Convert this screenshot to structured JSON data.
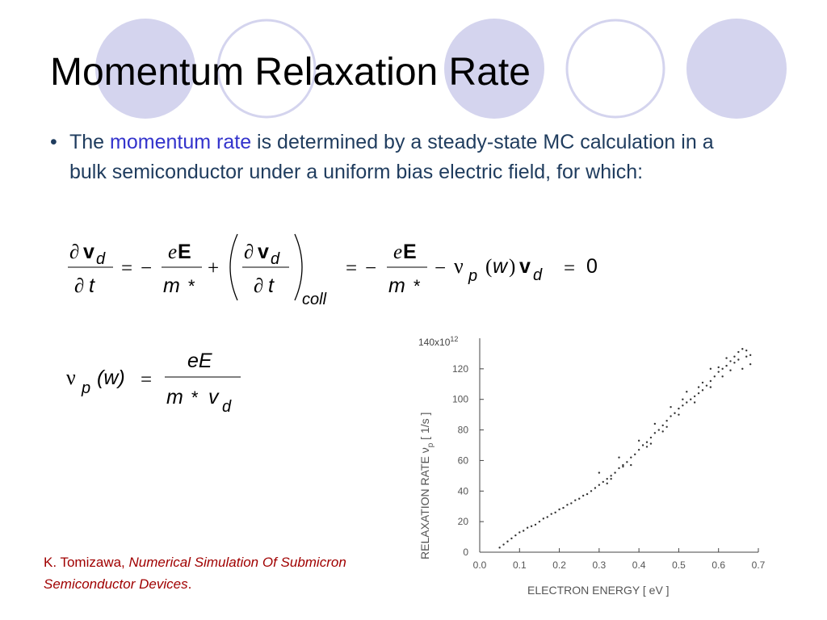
{
  "slide": {
    "title": "Momentum Relaxation Rate",
    "bullet": {
      "prefix": "The ",
      "highlight": "momentum rate",
      "suffix": " is determined by a steady-state MC calculation in a bulk semiconductor under a uniform bias electric field, for which:"
    },
    "citation": {
      "author": "K. Tomizawa, ",
      "title": "Numerical Simulation Of Submicron Semiconductor Devices",
      "end": "."
    }
  },
  "equation1": {
    "d": "∂",
    "v": "v",
    "sub_d": "d",
    "t": "t",
    "eq": "=",
    "minus": "−",
    "plus": "+",
    "e": "e",
    "E": "E",
    "m": "m",
    "star": "*",
    "coll": "coll",
    "nu": "ν",
    "sub_p": "p",
    "lp": "(",
    "rp": ")",
    "w": "w",
    "zero": "0"
  },
  "equation2": {
    "nu": "ν",
    "sub_p": "p",
    "w_arg": "(w)",
    "eq": "=",
    "numerator": "eE",
    "m": "m",
    "star": "*",
    "v": "v",
    "sub_d": "d"
  },
  "chart_data": {
    "type": "scatter",
    "x_ticks": [
      "0.0",
      "0.1",
      "0.2",
      "0.3",
      "0.4",
      "0.5",
      "0.6",
      "0.7"
    ],
    "y_ticks": [
      "0",
      "20",
      "40",
      "60",
      "80",
      "100",
      "120"
    ],
    "y_max_label": "140x10",
    "y_max_exp": "12",
    "xlabel": "ELECTRON ENERGY  [ eV ]",
    "ylabel": "RELAXATION RATE  ν",
    "ylabel_sub": "p",
    "ylabel_unit": "  [ 1/s ]",
    "xlim": [
      0,
      0.7
    ],
    "ylim": [
      0,
      140
    ],
    "points": [
      [
        0.05,
        3
      ],
      [
        0.06,
        5
      ],
      [
        0.07,
        7
      ],
      [
        0.08,
        9
      ],
      [
        0.09,
        11
      ],
      [
        0.1,
        13
      ],
      [
        0.11,
        14
      ],
      [
        0.12,
        16
      ],
      [
        0.13,
        17
      ],
      [
        0.14,
        18
      ],
      [
        0.15,
        20
      ],
      [
        0.16,
        22
      ],
      [
        0.17,
        23
      ],
      [
        0.18,
        25
      ],
      [
        0.19,
        26
      ],
      [
        0.2,
        28
      ],
      [
        0.21,
        29
      ],
      [
        0.22,
        31
      ],
      [
        0.23,
        32
      ],
      [
        0.24,
        34
      ],
      [
        0.25,
        35
      ],
      [
        0.26,
        37
      ],
      [
        0.27,
        38
      ],
      [
        0.28,
        40
      ],
      [
        0.29,
        42
      ],
      [
        0.3,
        44
      ],
      [
        0.31,
        46
      ],
      [
        0.32,
        48
      ],
      [
        0.33,
        50
      ],
      [
        0.34,
        52
      ],
      [
        0.35,
        55
      ],
      [
        0.36,
        57
      ],
      [
        0.37,
        59
      ],
      [
        0.38,
        62
      ],
      [
        0.39,
        64
      ],
      [
        0.4,
        67
      ],
      [
        0.41,
        70
      ],
      [
        0.42,
        72
      ],
      [
        0.43,
        75
      ],
      [
        0.44,
        78
      ],
      [
        0.45,
        80
      ],
      [
        0.46,
        83
      ],
      [
        0.47,
        86
      ],
      [
        0.48,
        89
      ],
      [
        0.49,
        91
      ],
      [
        0.5,
        94
      ],
      [
        0.51,
        96
      ],
      [
        0.52,
        98
      ],
      [
        0.53,
        100
      ],
      [
        0.54,
        102
      ],
      [
        0.55,
        104
      ],
      [
        0.56,
        106
      ],
      [
        0.57,
        109
      ],
      [
        0.58,
        112
      ],
      [
        0.59,
        115
      ],
      [
        0.6,
        118
      ],
      [
        0.61,
        120
      ],
      [
        0.62,
        122
      ],
      [
        0.63,
        125
      ],
      [
        0.64,
        128
      ],
      [
        0.65,
        131
      ],
      [
        0.66,
        133
      ],
      [
        0.67,
        132
      ],
      [
        0.68,
        129
      ],
      [
        0.3,
        52
      ],
      [
        0.33,
        48
      ],
      [
        0.36,
        56
      ],
      [
        0.4,
        73
      ],
      [
        0.42,
        69
      ],
      [
        0.44,
        84
      ],
      [
        0.46,
        79
      ],
      [
        0.48,
        95
      ],
      [
        0.5,
        90
      ],
      [
        0.52,
        105
      ],
      [
        0.54,
        98
      ],
      [
        0.56,
        111
      ],
      [
        0.58,
        108
      ],
      [
        0.6,
        121
      ],
      [
        0.61,
        115
      ],
      [
        0.62,
        127
      ],
      [
        0.63,
        119
      ],
      [
        0.64,
        124
      ],
      [
        0.65,
        126
      ],
      [
        0.66,
        120
      ],
      [
        0.67,
        128
      ],
      [
        0.68,
        123
      ],
      [
        0.58,
        120
      ],
      [
        0.55,
        108
      ],
      [
        0.51,
        100
      ],
      [
        0.47,
        82
      ],
      [
        0.43,
        71
      ],
      [
        0.38,
        57
      ],
      [
        0.35,
        62
      ],
      [
        0.32,
        45
      ]
    ]
  }
}
